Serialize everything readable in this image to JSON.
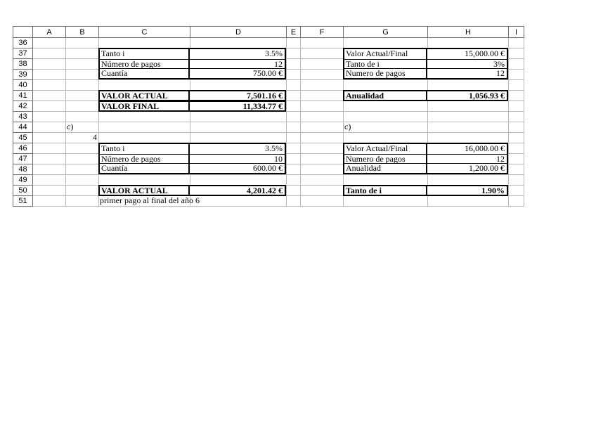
{
  "sheet": {
    "column_headers": [
      "A",
      "B",
      "C",
      "D",
      "E",
      "F",
      "G",
      "H",
      "I"
    ],
    "row_numbers": [
      "36",
      "37",
      "38",
      "39",
      "40",
      "41",
      "42",
      "43",
      "44",
      "45",
      "46",
      "47",
      "48",
      "49",
      "50",
      "51"
    ]
  },
  "cells": {
    "b44": "c)",
    "b45": "4",
    "g44": "c)",
    "c51_note": "primer pago al final del año 6"
  },
  "blocks": {
    "left_top": {
      "rows": [
        {
          "label": "Tanto i",
          "value": "3.5%"
        },
        {
          "label": "Número de pagos",
          "value": "12"
        },
        {
          "label": "Cuantía",
          "value": "750.00 €"
        }
      ]
    },
    "left_result_actual": {
      "label": "VALOR ACTUAL",
      "value": "7,501.16 €"
    },
    "left_result_final": {
      "label": "VALOR FINAL",
      "value": "11,334.77 €"
    },
    "right_top": {
      "rows": [
        {
          "label": "Valor Actual/Final",
          "value": "15,000.00 €"
        },
        {
          "label": "Tanto de i",
          "value": "3%"
        },
        {
          "label": "Numero de pagos",
          "value": "12"
        }
      ]
    },
    "right_result_anualidad": {
      "label": "Anualidad",
      "value": "1,056.93 €"
    },
    "left_bottom": {
      "rows": [
        {
          "label": "Tanto i",
          "value": "3.5%"
        },
        {
          "label": "Número de pagos",
          "value": "10"
        },
        {
          "label": "Cuantía",
          "value": "600.00 €"
        }
      ]
    },
    "left_result_actual2": {
      "label": "VALOR ACTUAL",
      "value": "4,201.42 €"
    },
    "right_bottom": {
      "rows": [
        {
          "label": "Valor Actual/Final",
          "value": "16,000.00 €"
        },
        {
          "label": "Numero de pagos",
          "value": "12"
        },
        {
          "label": "Anualidad",
          "value": "1,200.00 €"
        }
      ]
    },
    "right_result_tanto": {
      "label": "Tanto de i",
      "value": "1.90%"
    }
  },
  "colors": {
    "box_border": "#000000",
    "gridline": "#b7b7b7",
    "header_border": "#6e6e6e"
  }
}
